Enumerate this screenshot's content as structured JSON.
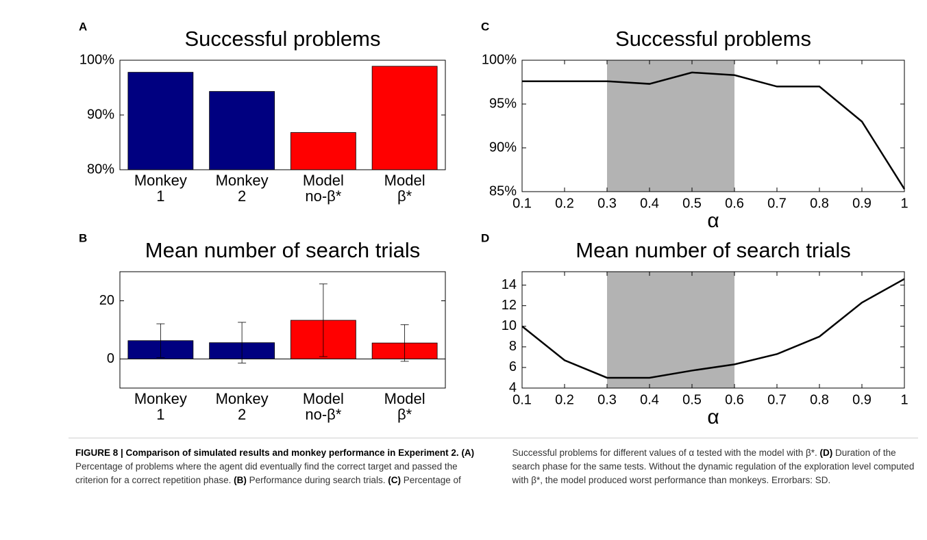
{
  "chart_data": [
    {
      "type": "bar",
      "panel": "A",
      "title": "Successful problems",
      "categories": [
        [
          "Monkey",
          "1"
        ],
        [
          "Monkey",
          "2"
        ],
        [
          "Model",
          "no-β*"
        ],
        [
          "Model",
          "β*"
        ]
      ],
      "values": [
        97.8,
        94.3,
        86.8,
        98.9
      ],
      "colors": [
        "#000080",
        "#000080",
        "#ff0000",
        "#ff0000"
      ],
      "ylim": [
        80,
        100
      ],
      "yticks": [
        {
          "value": 80,
          "label": "80%"
        },
        {
          "value": 90,
          "label": "90%"
        },
        {
          "value": 100,
          "label": "100%"
        }
      ]
    },
    {
      "type": "bar",
      "panel": "B",
      "title": "Mean number of search trials",
      "categories": [
        [
          "Monkey",
          "1"
        ],
        [
          "Monkey",
          "2"
        ],
        [
          "Model",
          "no-β*"
        ],
        [
          "Model",
          "β*"
        ]
      ],
      "values": [
        6.3,
        5.6,
        13.3,
        5.5
      ],
      "errors": [
        5.8,
        7.0,
        12.5,
        6.3
      ],
      "colors": [
        "#000080",
        "#000080",
        "#ff0000",
        "#ff0000"
      ],
      "ylim": [
        -10,
        30
      ],
      "yticks": [
        0,
        20
      ]
    },
    {
      "type": "line",
      "panel": "C",
      "title": "Successful problems",
      "xlabel": "α",
      "x": [
        0.1,
        0.2,
        0.3,
        0.4,
        0.5,
        0.6,
        0.7,
        0.8,
        0.9,
        1
      ],
      "values": [
        97.6,
        97.6,
        97.6,
        97.3,
        98.6,
        98.3,
        97.0,
        97.0,
        93.0,
        85.3
      ],
      "color": "#000000",
      "shade": [
        0.3,
        0.6
      ],
      "shade_color": "#b3b3b3",
      "xlim": [
        0.1,
        1
      ],
      "xticks": [
        0.1,
        0.2,
        0.3,
        0.4,
        0.5,
        0.6,
        0.7,
        0.8,
        0.9,
        1
      ],
      "ylim": [
        85,
        100
      ],
      "yticks": [
        {
          "value": 85,
          "label": "85%"
        },
        {
          "value": 90,
          "label": "90%"
        },
        {
          "value": 95,
          "label": "95%"
        },
        {
          "value": 100,
          "label": "100%"
        }
      ]
    },
    {
      "type": "line",
      "panel": "D",
      "title": "Mean number of search trials",
      "xlabel": "α",
      "x": [
        0.1,
        0.2,
        0.3,
        0.4,
        0.5,
        0.6,
        0.7,
        0.8,
        0.9,
        1
      ],
      "values": [
        10,
        6.7,
        5,
        5,
        5.7,
        6.3,
        7.3,
        9,
        12.3,
        14.6
      ],
      "color": "#000000",
      "shade": [
        0.3,
        0.6
      ],
      "shade_color": "#b3b3b3",
      "xlim": [
        0.1,
        1
      ],
      "xticks": [
        0.1,
        0.2,
        0.3,
        0.4,
        0.5,
        0.6,
        0.7,
        0.8,
        0.9,
        1
      ],
      "ylim": [
        4,
        15.3
      ],
      "yticks": [
        4,
        6,
        8,
        10,
        12,
        14
      ]
    }
  ],
  "caption": [
    {
      "text": "FIGURE 8 | Comparison of simulated results and monkey performance in Experiment 2.",
      "bold": true
    },
    {
      "text": " ",
      "bold": false
    },
    {
      "text": "(A)",
      "bold": true
    },
    {
      "text": " Percentage of problems where the agent did eventually find the correct target and passed the criterion for a correct repetition phase. ",
      "bold": false
    },
    {
      "text": "(B)",
      "bold": true
    },
    {
      "text": " Performance during search trials. ",
      "bold": false
    },
    {
      "text": "(C)",
      "bold": true
    },
    {
      "text": " Percentage of Successful problems for different values of α tested with the model with β*. ",
      "bold": false
    },
    {
      "text": "(D)",
      "bold": true
    },
    {
      "text": " Duration of the search phase for the same tests. Without the dynamic regulation of the exploration level computed with β*, the model produced worst performance than monkeys. Errorbars: SD.",
      "bold": false
    }
  ]
}
